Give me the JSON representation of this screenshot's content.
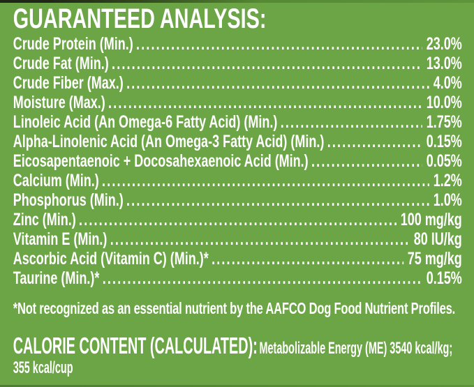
{
  "colors": {
    "background": "#6ca546",
    "text": "#ffffff",
    "package_edge_black": "#1f2517",
    "package_edge_dark_green": "#568934",
    "package_edge_bottom": "#578c36"
  },
  "header": {
    "title": "GUARANTEED ANALYSIS:"
  },
  "analysis_table": {
    "rows": [
      {
        "label": "Crude Protein (Min.)",
        "value": "23.0%"
      },
      {
        "label": "Crude Fat (Min.)",
        "value": "13.0%"
      },
      {
        "label": "Crude Fiber (Max.)",
        "value": "4.0%"
      },
      {
        "label": "Moisture (Max.)",
        "value": "10.0%"
      },
      {
        "label": "Linoleic Acid (An Omega-6 Fatty Acid) (Min.)",
        "value": "1.75%"
      },
      {
        "label": "Alpha-Linolenic Acid (An Omega-3 Fatty Acid) (Min.)",
        "value": "0.15%"
      },
      {
        "label": "Eicosapentaenoic + Docosahexaenoic Acid (Min.)",
        "value": "0.05%"
      },
      {
        "label": "Calcium (Min.)",
        "value": "1.2%"
      },
      {
        "label": "Phosphorus (Min.)",
        "value": "1.0%"
      },
      {
        "label": "Zinc (Min.)",
        "value": "100 mg/kg"
      },
      {
        "label": "Vitamin E (Min.)",
        "value": "80 IU/kg"
      },
      {
        "label": "Ascorbic Acid (Vitamin C) (Min.)*",
        "value": "75 mg/kg"
      },
      {
        "label": "Taurine (Min.)*",
        "value": "0.15%"
      }
    ]
  },
  "footnote": "*Not recognized as an essential nutrient by the AAFCO Dog Food Nutrient Profiles.",
  "calorie_content": {
    "heading": "CALORIE CONTENT (CALCULATED):",
    "line1": "Metabolizable Energy (ME) 3540 kcal/kg;",
    "line2": "355 kcal/cup"
  }
}
